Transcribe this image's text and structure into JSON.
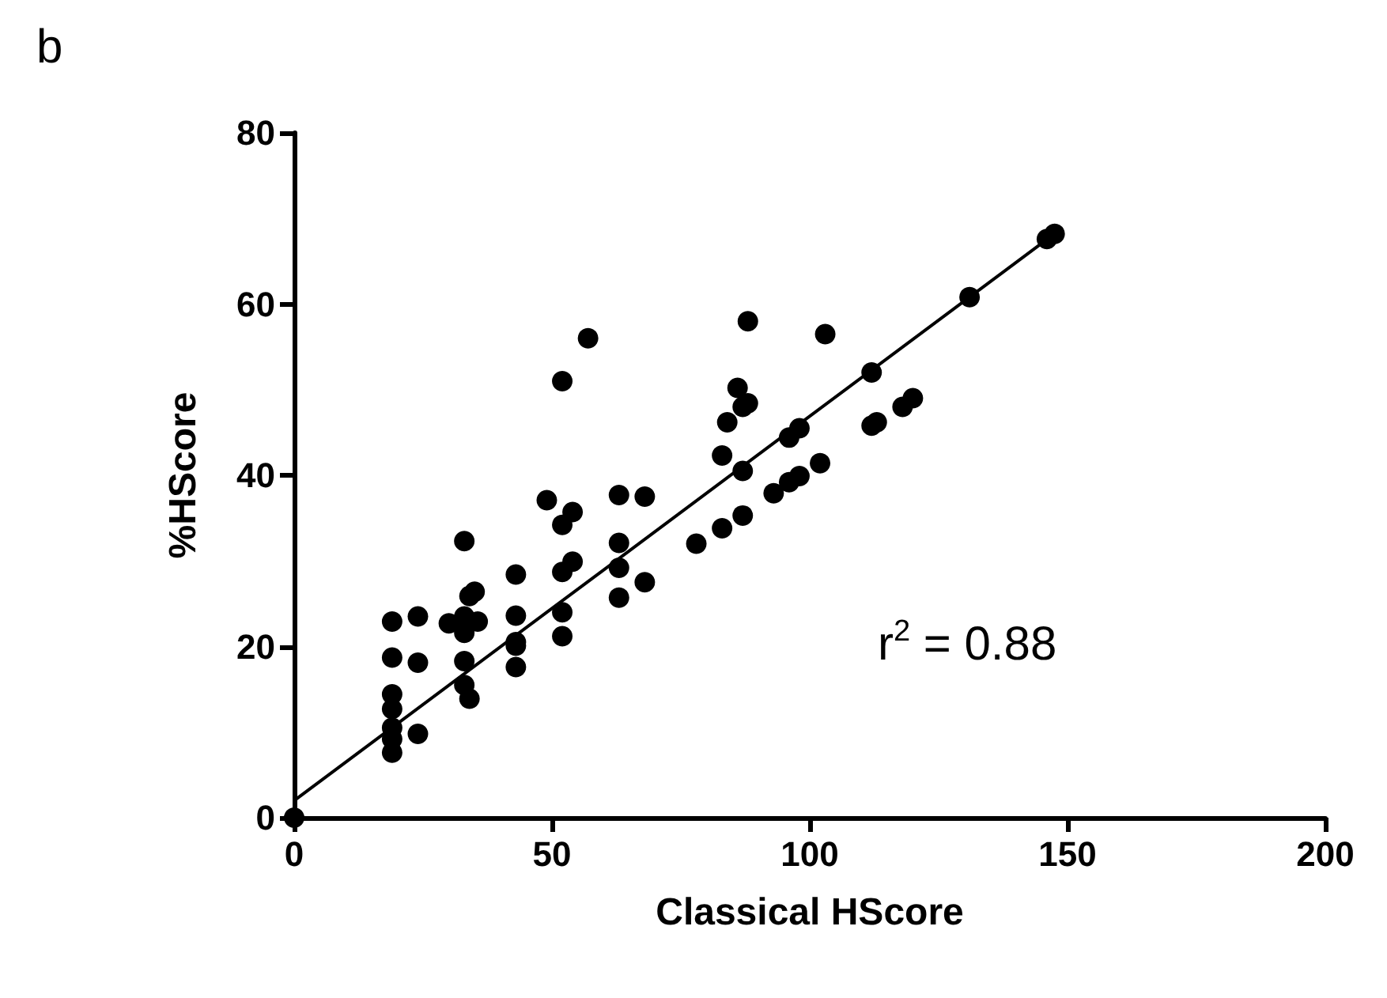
{
  "chart_data": {
    "type": "scatter",
    "title": "b",
    "xlabel": "Classical HScore",
    "ylabel": "%HScore",
    "annotations": [
      "r$^{2}$ = 0.88"
    ],
    "xlim": [
      0,
      200
    ],
    "xticks": [
      0,
      50,
      100,
      150,
      200
    ],
    "ylim": [
      0,
      80
    ],
    "yticks": [
      0,
      20,
      40,
      60,
      80
    ],
    "grid": false,
    "marker": "circle",
    "series": [
      {
        "color": "#000000",
        "x": [
          0,
          19,
          19,
          19,
          19,
          19,
          19,
          19,
          24,
          24,
          24,
          30,
          33,
          34,
          35,
          35.6,
          33,
          33,
          33,
          34,
          33,
          43,
          43,
          43,
          43,
          43,
          49,
          54,
          52,
          52,
          57,
          54,
          52,
          52,
          52,
          63,
          63,
          63,
          63,
          68,
          68,
          88,
          103,
          131,
          112,
          86,
          88,
          87,
          84,
          83,
          87,
          96,
          98,
          112,
          113,
          118,
          120,
          102,
          98,
          96,
          93,
          87,
          83,
          78,
          146,
          147.5
        ],
        "values": [
          0,
          22.9,
          18.7,
          14.4,
          12.7,
          10.5,
          9.2,
          7.6,
          23.5,
          18.1,
          9.8,
          22.7,
          21.6,
          25.9,
          26.4,
          22.9,
          23.5,
          18.3,
          15.5,
          13.9,
          32.3,
          28.4,
          23.6,
          20.5,
          20.1,
          17.6,
          37.1,
          35.7,
          34.2,
          51,
          56,
          29.9,
          28.7,
          24,
          21.2,
          37.7,
          32.1,
          29.2,
          25.7,
          37.5,
          27.5,
          58,
          56.5,
          60.8,
          52,
          50.2,
          48.4,
          48,
          46.2,
          42.3,
          40.5,
          44.4,
          45.5,
          45.8,
          46.2,
          48,
          49,
          41.4,
          39.9,
          39.2,
          37.9,
          35.3,
          33.8,
          32,
          67.6,
          68.2
        ]
      },
      {
        "type": "line",
        "color": "#000000",
        "marker": "none",
        "line_style": "solid",
        "x": [
          0,
          147
        ],
        "values": [
          2,
          68
        ]
      }
    ]
  }
}
